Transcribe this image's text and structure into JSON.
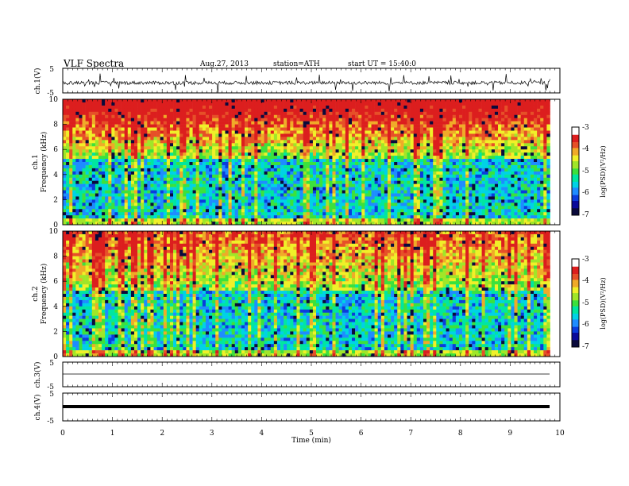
{
  "header": {
    "title": "VLF Spectra",
    "date": "Aug.27, 2013",
    "station": "station=ATH",
    "start": "start UT = 15:40:0"
  },
  "colors": {
    "colormap": [
      "#0a0a3c",
      "#0a0a9a",
      "#0a3cdc",
      "#1e8cff",
      "#00d2e6",
      "#00e6a0",
      "#3ce13c",
      "#a0e628",
      "#f0f028",
      "#f0aa28",
      "#e65028",
      "#dc1e1e",
      "#ffffff"
    ]
  },
  "chart_data": [
    {
      "type": "line",
      "ylabel": "ch.1(V)",
      "ylim": [
        -5,
        5
      ],
      "y_ticks": [
        "5",
        "-5"
      ],
      "note_values": "waveform amplitude approx 0 to -2 V with frequent spikes"
    },
    {
      "type": "heatmap",
      "ylabel_line1": "ch.1",
      "ylabel_line2": "Frequency (kHz)",
      "ylim": [
        0,
        10
      ],
      "y_ticks": [
        "0",
        "2",
        "4",
        "6",
        "8",
        "10"
      ],
      "colorbar": {
        "label": "log(PSD)(V²/Hz)",
        "range": [
          -7,
          -3
        ],
        "ticks": [
          "-3",
          "-4",
          "-5",
          "-6",
          "-7"
        ]
      }
    },
    {
      "type": "heatmap",
      "ylabel_line1": "ch.2",
      "ylabel_line2": "Frequency (kHz)",
      "ylim": [
        0,
        10
      ],
      "y_ticks": [
        "0",
        "2",
        "4",
        "6",
        "8",
        "10"
      ],
      "colorbar": {
        "label": "log(PSD)(V²/Hz)",
        "range": [
          -7,
          -3
        ],
        "ticks": [
          "-3",
          "-4",
          "-5",
          "-6",
          "-7"
        ]
      }
    },
    {
      "type": "line",
      "ylabel": "ch.3(V)",
      "ylim": [
        -5,
        5
      ],
      "y_ticks": [
        "5",
        "-5"
      ],
      "constant_value": 0
    },
    {
      "type": "line",
      "ylabel": "ch.4(V)",
      "ylim": [
        -5,
        5
      ],
      "y_ticks": [
        "5",
        "-5"
      ],
      "constant_value": 0
    }
  ],
  "x_axis": {
    "label": "Time (min)",
    "range": [
      0,
      10
    ],
    "data_end": 9.8,
    "ticks": [
      "0",
      "1",
      "2",
      "3",
      "4",
      "5",
      "6",
      "7",
      "8",
      "9",
      "10"
    ]
  }
}
